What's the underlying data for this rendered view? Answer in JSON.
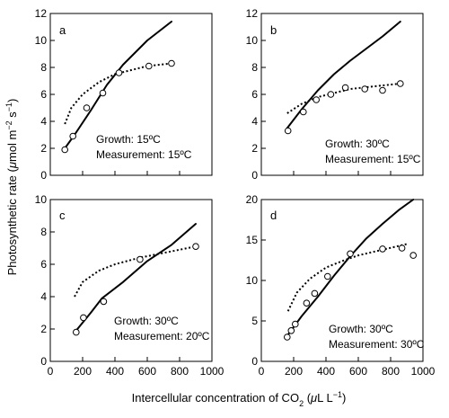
{
  "ylabel": {
    "pre": "Photosynthetic rate (",
    "mu": "μ",
    "mid": "mol m",
    "sup1": "−2",
    "mid2": " s",
    "sup2": "−1",
    "post": ")"
  },
  "xlabel": {
    "pre": "Intercellular concentration of CO",
    "sub": "2",
    "mid": " (",
    "mu": "μ",
    "mid2": "L L",
    "sup": "−1",
    "post": ")"
  },
  "chart_data": [
    {
      "type": "line",
      "panel": "a",
      "growth": "Growth: 15ºC",
      "measurement": "Measurement: 15ºC",
      "xlim": [
        0,
        1000
      ],
      "ylim": [
        0,
        12
      ],
      "xticks": [],
      "yticks": [
        0,
        2,
        4,
        6,
        8,
        10,
        12
      ],
      "grid": false,
      "series": [
        {
          "style": "solid",
          "x": [
            90,
            150,
            250,
            350,
            450,
            600,
            750
          ],
          "y": [
            2.0,
            3.0,
            4.8,
            6.7,
            8.2,
            10.0,
            11.4
          ]
        },
        {
          "style": "dotted",
          "x": [
            90,
            130,
            200,
            300,
            400,
            500,
            600,
            750
          ],
          "y": [
            3.8,
            5.0,
            6.0,
            6.9,
            7.5,
            7.8,
            8.1,
            8.3
          ]
        },
        {
          "style": "markers",
          "x": [
            90,
            140,
            225,
            325,
            425,
            610,
            750
          ],
          "y": [
            1.9,
            2.9,
            5.0,
            6.1,
            7.6,
            8.1,
            8.3
          ]
        }
      ]
    },
    {
      "type": "line",
      "panel": "b",
      "growth": "Growth: 30ºC",
      "measurement": "Measurement: 15ºC",
      "xlim": [
        0,
        1000
      ],
      "ylim": [
        0,
        12
      ],
      "xticks": [],
      "yticks": [
        0,
        2,
        4,
        6,
        8,
        10,
        12
      ],
      "grid": false,
      "series": [
        {
          "style": "solid",
          "x": [
            160,
            250,
            350,
            450,
            550,
            650,
            750,
            860
          ],
          "y": [
            3.5,
            4.9,
            6.3,
            7.5,
            8.5,
            9.4,
            10.3,
            11.4
          ]
        },
        {
          "style": "dotted",
          "x": [
            160,
            250,
            350,
            450,
            550,
            700,
            860
          ],
          "y": [
            4.6,
            5.3,
            5.8,
            6.1,
            6.4,
            6.6,
            6.8
          ]
        },
        {
          "style": "markers",
          "x": [
            165,
            260,
            340,
            430,
            520,
            640,
            750,
            860
          ],
          "y": [
            3.3,
            4.7,
            5.6,
            6.0,
            6.5,
            6.4,
            6.3,
            6.8
          ]
        }
      ]
    },
    {
      "type": "line",
      "panel": "c",
      "growth": "Growth: 30ºC",
      "measurement": "Measurement: 20ºC",
      "xlim": [
        0,
        1000
      ],
      "ylim": [
        0,
        10
      ],
      "xticks": [
        0,
        200,
        400,
        600,
        800,
        1000
      ],
      "yticks": [
        0,
        2,
        4,
        6,
        8,
        10
      ],
      "grid": false,
      "series": [
        {
          "style": "solid",
          "x": [
            160,
            250,
            320,
            450,
            600,
            750,
            900
          ],
          "y": [
            1.9,
            3.0,
            3.9,
            4.9,
            6.2,
            7.2,
            8.5
          ]
        },
        {
          "style": "dotted",
          "x": [
            150,
            200,
            300,
            400,
            550,
            700,
            900
          ],
          "y": [
            4.0,
            4.9,
            5.6,
            6.0,
            6.4,
            6.7,
            7.1
          ]
        },
        {
          "style": "markers",
          "x": [
            160,
            205,
            330,
            555,
            900
          ],
          "y": [
            1.8,
            2.7,
            3.7,
            6.3,
            7.1
          ]
        }
      ]
    },
    {
      "type": "line",
      "panel": "d",
      "growth": "Growth: 30ºC",
      "measurement": "Measurement: 30ºC",
      "xlim": [
        0,
        1000
      ],
      "ylim": [
        0,
        20
      ],
      "xticks": [
        0,
        200,
        400,
        600,
        800,
        1000
      ],
      "yticks": [
        0,
        5,
        10,
        15,
        20
      ],
      "grid": false,
      "series": [
        {
          "style": "solid",
          "x": [
            165,
            250,
            350,
            450,
            550,
            650,
            750,
            850,
            940
          ],
          "y": [
            3.3,
            5.6,
            8.0,
            10.6,
            13.0,
            15.2,
            17.0,
            18.7,
            20.0
          ]
        },
        {
          "style": "dotted",
          "x": [
            165,
            220,
            300,
            400,
            500,
            600,
            750,
            900
          ],
          "y": [
            6.2,
            8.5,
            10.2,
            11.6,
            12.4,
            13.1,
            13.8,
            14.5
          ]
        },
        {
          "style": "markers",
          "x": [
            160,
            185,
            210,
            280,
            330,
            410,
            550,
            750,
            870,
            940
          ],
          "y": [
            3.0,
            3.8,
            4.6,
            7.2,
            8.4,
            10.5,
            13.3,
            13.9,
            14.0,
            13.1
          ]
        }
      ]
    }
  ]
}
